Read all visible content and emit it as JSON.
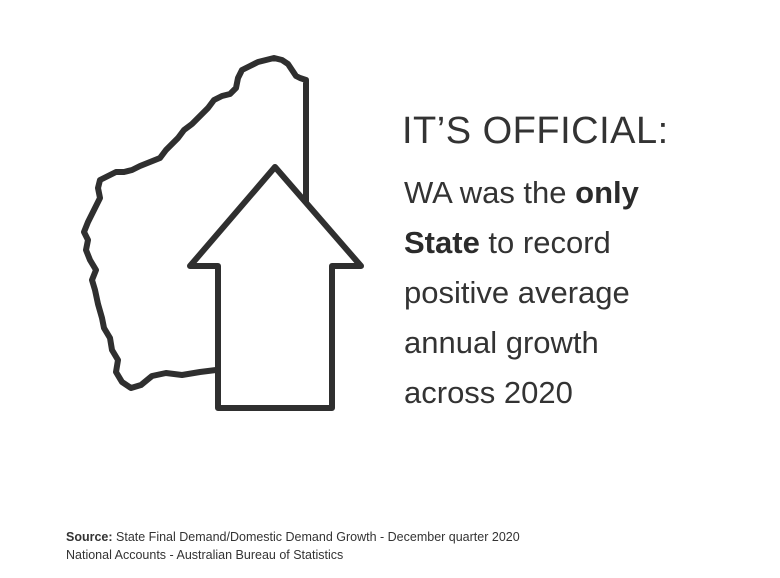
{
  "headline": "IT’S OFFICIAL:",
  "body": {
    "line1_pre": "WA was the ",
    "line1_bold": "only",
    "line2_bold": "State",
    "line2_post": " to record",
    "line3": "positive average",
    "line4": "annual growth",
    "line5": "across 2020"
  },
  "footer": {
    "source_label": "Source:",
    "source_text": " State Final Demand/Domestic Demand Growth - December quarter 2020",
    "line2": "National Accounts - Australian Bureau of Statistics"
  },
  "icons": {
    "map": "western-australia-map-outline",
    "arrow": "up-arrow-outline"
  },
  "colors": {
    "outline": "#2f2f2f",
    "text": "#333333"
  }
}
